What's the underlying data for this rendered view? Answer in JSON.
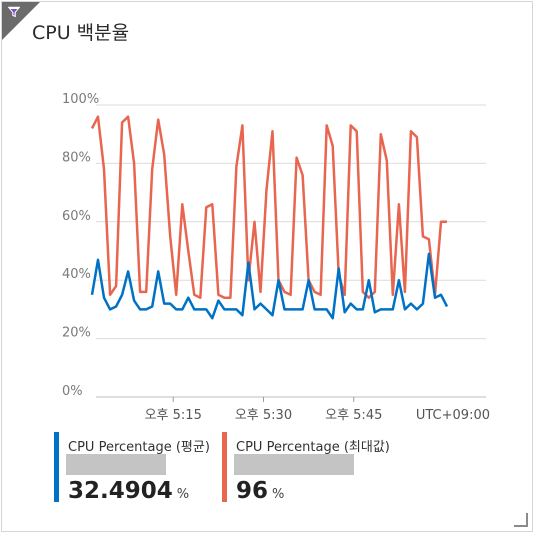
{
  "title": "CPU 백분율",
  "icons": {
    "corner": "filter-icon"
  },
  "chart_data": {
    "type": "line",
    "title": "CPU 백분율",
    "ylim": [
      0,
      100
    ],
    "y_ticks": [
      "100%",
      "80%",
      "60%",
      "40%",
      "20%",
      "0%"
    ],
    "y_tick_values": [
      100,
      80,
      60,
      40,
      20,
      0
    ],
    "x_ticks": [
      "오후 5:15",
      "오후 5:30",
      "오후 5:45"
    ],
    "x_tick_minutes": [
      15,
      30,
      45
    ],
    "timezone_label": "UTC+09:00",
    "grid": true,
    "x_minutes_range": [
      1.5,
      60.5
    ],
    "series": [
      {
        "name": "CPU Percentage (평균)",
        "color": "#0072c6",
        "x": [
          1.5,
          2.5,
          3.5,
          4.5,
          5.5,
          6.5,
          7.5,
          8.5,
          9.5,
          10.5,
          11.5,
          12.5,
          13.5,
          14.5,
          15.5,
          16.5,
          17.5,
          18.5,
          19.5,
          20.5,
          21.5,
          22.5,
          23.5,
          24.5,
          25.5,
          26.5,
          27.5,
          28.5,
          29.5,
          30.5,
          31.5,
          32.5,
          33.5,
          34.5,
          35.5,
          36.5,
          37.5,
          38.5,
          39.5,
          40.5,
          41.5,
          42.5,
          43.5,
          44.5,
          45.5,
          46.5,
          47.5,
          48.5,
          49.5,
          50.5,
          51.5,
          52.5,
          53.5,
          54.5,
          55.5,
          56.5,
          57.5,
          58.5,
          59.5,
          60.5
        ],
        "values": [
          35,
          47,
          34,
          30,
          31,
          35,
          43,
          33,
          30,
          30,
          31,
          43,
          32,
          32,
          30,
          30,
          34,
          30,
          30,
          30,
          27,
          33,
          30,
          30,
          30,
          28,
          46,
          30,
          32,
          30,
          28,
          40,
          30,
          30,
          30,
          30,
          40,
          30,
          30,
          30,
          27,
          44,
          29,
          32,
          30,
          30,
          40,
          29,
          30,
          30,
          30,
          40,
          30,
          32,
          30,
          32,
          49,
          34,
          35,
          31
        ],
        "legend_value": "32.4904",
        "legend_unit": "%"
      },
      {
        "name": "CPU Percentage (최대값)",
        "color": "#e8664f",
        "x": [
          1.5,
          2.5,
          3.5,
          4.5,
          5.5,
          6.5,
          7.5,
          8.5,
          9.5,
          10.5,
          11.5,
          12.5,
          13.5,
          14.5,
          15.5,
          16.5,
          17.5,
          18.5,
          19.5,
          20.5,
          21.5,
          22.5,
          23.5,
          24.5,
          25.5,
          26.5,
          27.5,
          28.5,
          29.5,
          30.5,
          31.5,
          32.5,
          33.5,
          34.5,
          35.5,
          36.5,
          37.5,
          38.5,
          39.5,
          40.5,
          41.5,
          42.5,
          43.5,
          44.5,
          45.5,
          46.5,
          47.5,
          48.5,
          49.5,
          50.5,
          51.5,
          52.5,
          53.5,
          54.5,
          55.5,
          56.5,
          57.5,
          58.5,
          59.5,
          60.5
        ],
        "values": [
          92,
          96,
          78,
          35,
          38,
          94,
          96,
          80,
          36,
          36,
          78,
          95,
          83,
          55,
          35,
          66,
          50,
          35,
          34,
          65,
          66,
          35,
          34,
          34,
          79,
          93,
          40,
          60,
          36,
          71,
          91,
          40,
          36,
          35,
          82,
          76,
          40,
          36,
          35,
          93,
          86,
          42,
          35,
          93,
          91,
          36,
          34,
          36,
          90,
          81,
          35,
          66,
          36,
          91,
          89,
          55,
          54,
          35,
          60,
          60
        ],
        "legend_value": "96",
        "legend_unit": "%"
      }
    ]
  }
}
